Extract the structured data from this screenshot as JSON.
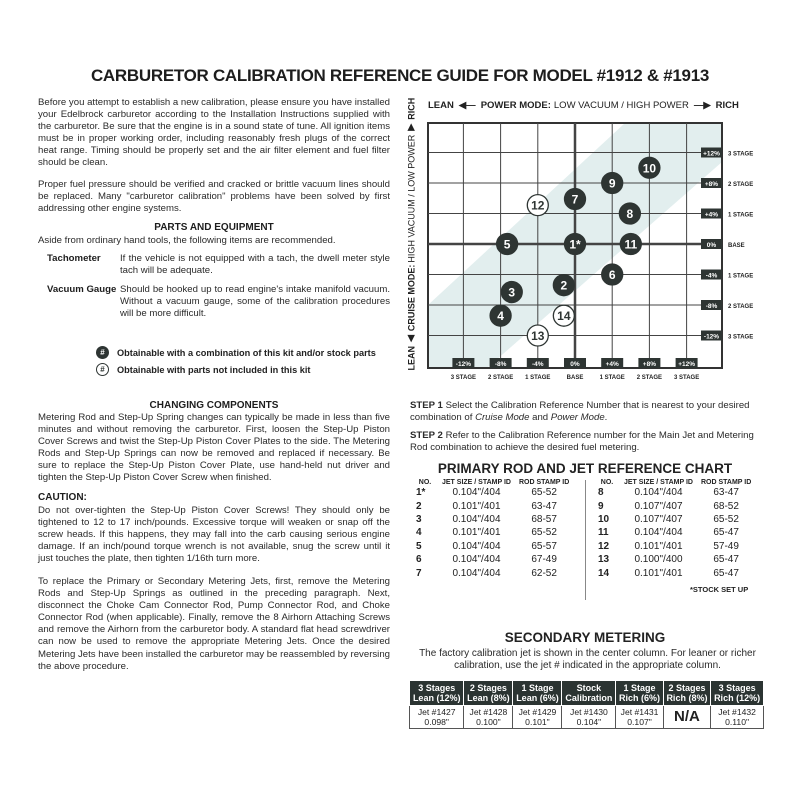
{
  "title": "CARBURETOR CALIBRATION REFERENCE GUIDE FOR MODEL #1912 & #1913",
  "intro": [
    "Before you attempt to establish a new calibration, please ensure you have installed your Edelbrock carburetor according to the Installation Instructions supplied with the carburetor. Be sure that the engine is in a sound state of tune. All ignition items must be in proper working order, including reasonably fresh plugs of the correct heat range. Timing should be properly set and the air filter element and fuel filter should be clean.",
    "Proper fuel pressure should be verified and cracked or brittle vacuum lines should be replaced. Many \"carburetor calibration\" problems have been solved by first addressing other engine systems."
  ],
  "parts": {
    "heading": "PARTS AND EQUIPMENT",
    "intro": "Aside from ordinary hand tools, the following items are recommended.",
    "items": [
      {
        "name": "Tachometer",
        "desc": "If the vehicle is not equipped with a tach, the dwell meter style tach will be adequate."
      },
      {
        "name": "Vacuum Gauge",
        "desc": "Should be hooked up to read engine's intake manifold vacuum. Without a vacuum gauge, some of the calibration procedures will be more difficult."
      }
    ]
  },
  "legend": [
    {
      "symbol": "#",
      "style": "filled",
      "text": "Obtainable with a combination of this kit and/or stock parts"
    },
    {
      "symbol": "#",
      "style": "open",
      "text": "Obtainable with parts not included in this kit"
    }
  ],
  "changing": {
    "heading": "CHANGING COMPONENTS",
    "p1": "Metering Rod and Step-Up Spring changes can typically be made in less than five minutes and without removing the carburetor. First, loosen the Step-Up Piston Cover Screws and twist the Step-Up Piston Cover Plates to the side. The Metering Rods and Step-Up Springs can now be removed and replaced if necessary. Be sure to replace the Step-Up Piston Cover Plate, use hand-held nut driver and tighten the Step-Up Piston Cover Screw when finished.",
    "caution_heading": "CAUTION:",
    "caution": "Do not over-tighten the Step-Up Piston Cover Screws! They should only be tightened to 12 to 17 inch/pounds. Excessive torque will weaken or snap off the screw heads. If this happens, they may fall into the carb causing serious engine damage. If an inch/pound torque wrench is not available, snug the screw until it just touches the plate, then tighten 1/16th turn more.",
    "p3": "To replace the Primary or Secondary Metering Jets, first, remove the Metering Rods and Step-Up Springs as outlined in the preceding paragraph. Next, disconnect the Choke Cam Connector Rod, Pump Connector Rod, and Choke Connector Rod (when applicable). Finally, remove the 8 Airhorn Attaching Screws and remove the Airhorn from the carburetor body. A standard flat head screwdriver can now be used to remove the appropriate Metering Jets. Once the desired Metering Jets have been installed the carburetor may be reassembled by reversing the above procedure."
  },
  "chart": {
    "top_lean": "LEAN",
    "top_mode": "POWER MODE:",
    "top_mode_sub": "LOW VACUUM / HIGH POWER",
    "top_rich": "RICH",
    "side_lean": "LEAN",
    "side_mode": "CRUISE MODE:",
    "side_mode_sub": "HIGH VACUUM / LOW POWER",
    "side_rich": "RICH",
    "ticks": [
      {
        "pct": "-12%",
        "stage": "3 STAGE",
        "value": -12
      },
      {
        "pct": "-8%",
        "stage": "2 STAGE",
        "value": -8
      },
      {
        "pct": "-4%",
        "stage": "1 STAGE",
        "value": -4
      },
      {
        "pct": "0%",
        "stage": "BASE",
        "value": 0
      },
      {
        "pct": "+4%",
        "stage": "1 STAGE",
        "value": 4
      },
      {
        "pct": "+8%",
        "stage": "2 STAGE",
        "value": 8
      },
      {
        "pct": "+12%",
        "stage": "3 STAGE",
        "value": 12
      }
    ],
    "points": [
      {
        "label": "1*",
        "power": 0,
        "cruise": 0,
        "filled": true
      },
      {
        "label": "2",
        "power": -1.2,
        "cruise": -5.4,
        "filled": true
      },
      {
        "label": "3",
        "power": -6.8,
        "cruise": -6.3,
        "filled": true
      },
      {
        "label": "4",
        "power": -8,
        "cruise": -9.4,
        "filled": true
      },
      {
        "label": "5",
        "power": -7.3,
        "cruise": 0,
        "filled": true
      },
      {
        "label": "6",
        "power": 4,
        "cruise": -4,
        "filled": true
      },
      {
        "label": "7",
        "power": 0,
        "cruise": 5.9,
        "filled": true
      },
      {
        "label": "8",
        "power": 5.9,
        "cruise": 4,
        "filled": true
      },
      {
        "label": "9",
        "power": 4,
        "cruise": 8,
        "filled": true
      },
      {
        "label": "10",
        "power": 8,
        "cruise": 10,
        "filled": true
      },
      {
        "label": "11",
        "power": 6,
        "cruise": 0,
        "filled": true
      },
      {
        "label": "12",
        "power": -4,
        "cruise": 5.1,
        "filled": false
      },
      {
        "label": "13",
        "power": -4,
        "cruise": -12,
        "filled": false
      },
      {
        "label": "14",
        "power": -1.2,
        "cruise": -9.4,
        "filled": false
      }
    ]
  },
  "steps": [
    {
      "label": "STEP 1",
      "text_a": "Select the Calibration Reference Number that is nearest to your desired combination of ",
      "em1": "Cruise Mode",
      "and": " and ",
      "em2": "Power Mode",
      "end": "."
    },
    {
      "label": "STEP 2",
      "text_a": "Refer to the Calibration Reference number for the Main Jet and Metering Rod combination to achieve the desired fuel metering."
    }
  ],
  "primary": {
    "title": "PRIMARY ROD AND JET REFERENCE CHART",
    "headers": [
      "NO.",
      "JET SIZE / STAMP ID",
      "ROD STAMP ID"
    ],
    "left": [
      [
        "1*",
        "0.104\"/404",
        "65-52"
      ],
      [
        "2",
        "0.101\"/401",
        "63-47"
      ],
      [
        "3",
        "0.104\"/404",
        "68-57"
      ],
      [
        "4",
        "0.101\"/401",
        "65-52"
      ],
      [
        "5",
        "0.104\"/404",
        "65-57"
      ],
      [
        "6",
        "0.104\"/404",
        "67-49"
      ],
      [
        "7",
        "0.104\"/404",
        "62-52"
      ]
    ],
    "right": [
      [
        "8",
        "0.104\"/404",
        "63-47"
      ],
      [
        "9",
        "0.107\"/407",
        "68-52"
      ],
      [
        "10",
        "0.107\"/407",
        "65-52"
      ],
      [
        "11",
        "0.104\"/404",
        "65-47"
      ],
      [
        "12",
        "0.101\"/401",
        "57-49"
      ],
      [
        "13",
        "0.100\"/400",
        "65-47"
      ],
      [
        "14",
        "0.101\"/401",
        "65-47"
      ]
    ],
    "footnote": "*STOCK SET UP"
  },
  "secondary": {
    "title": "SECONDARY METERING",
    "desc": "The factory calibration jet is shown in the center column. For leaner or richer calibration, use the jet # indicated in the appropriate column.",
    "columns": [
      {
        "h1": "3 Stages",
        "h2": "Lean (12%)",
        "jet": "Jet #1427",
        "size": "0.098\""
      },
      {
        "h1": "2 Stages",
        "h2": "Lean (8%)",
        "jet": "Jet #1428",
        "size": "0.100\""
      },
      {
        "h1": "1 Stage",
        "h2": "Lean (6%)",
        "jet": "Jet #1429",
        "size": "0.101\""
      },
      {
        "h1": "Stock",
        "h2": "Calibration",
        "jet": "Jet #1430",
        "size": "0.104\""
      },
      {
        "h1": "1 Stage",
        "h2": "Rich (6%)",
        "jet": "Jet #1431",
        "size": "0.107\""
      },
      {
        "h1": "2 Stages",
        "h2": "Rich (8%)",
        "jet": "N/A",
        "size": ""
      },
      {
        "h1": "3 Stages",
        "h2": "Rich (12%)",
        "jet": "Jet #1432",
        "size": "0.110\""
      }
    ]
  },
  "colors": {
    "dark": "#2e3533",
    "band": "#e2eeee",
    "grid": "#555555"
  }
}
